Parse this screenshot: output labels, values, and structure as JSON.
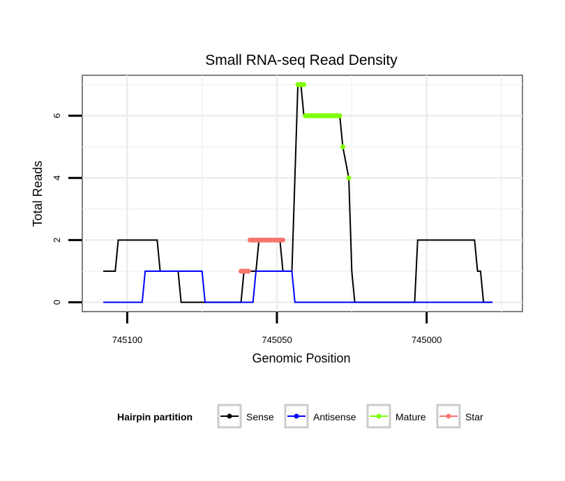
{
  "chart_data": {
    "type": "line",
    "title": "Small RNA-seq Read Density",
    "xlabel": "Genomic Position",
    "ylabel": "Total Reads",
    "x_reversed": true,
    "xlim": [
      745115,
      744968
    ],
    "ylim": [
      -0.3,
      7.3
    ],
    "x_ticks": [
      745100,
      745050,
      745000
    ],
    "x_tick_labels": [
      "745100",
      "745050",
      "745000"
    ],
    "y_ticks": [
      0,
      2,
      4,
      6
    ],
    "y_tick_labels": [
      "0",
      "2",
      "4",
      "6"
    ],
    "grid": true,
    "legend_position": "bottom",
    "legend_title": "Hairpin partition",
    "series": [
      {
        "name": "Sense",
        "color": "#000000",
        "x": [
          745108,
          745105,
          745104,
          745103,
          745090,
          745089,
          745085,
          745083,
          745082,
          745062,
          745061,
          745058,
          745057,
          745056,
          745053,
          745052,
          745051,
          745049,
          745048,
          745046,
          745045,
          745043,
          745042,
          745041,
          745036,
          745035,
          745033,
          745032,
          745029,
          745028,
          745026,
          745025,
          745024,
          745023,
          745004,
          745003,
          745001,
          745000,
          744984,
          744983,
          744982,
          744981,
          744978
        ],
        "y": [
          1,
          1,
          1,
          2,
          2,
          1,
          1,
          1,
          0,
          0,
          1,
          1,
          1,
          2,
          2,
          2,
          2,
          2,
          1,
          1,
          1,
          7,
          7,
          6,
          6,
          6,
          6,
          6,
          6,
          5,
          4,
          1,
          0,
          0,
          0,
          2,
          2,
          2,
          2,
          1,
          1,
          0,
          0
        ]
      },
      {
        "name": "Antisense",
        "color": "#0000ff",
        "x": [
          745108,
          745095,
          745094,
          745093,
          745076,
          745075,
          745074,
          745067,
          745066,
          745060,
          745059,
          745058,
          745057,
          745056,
          745046,
          745045,
          745044,
          745043,
          745042,
          745041,
          744981,
          744978
        ],
        "y": [
          0,
          0,
          1,
          1,
          1,
          1,
          0,
          0,
          0,
          0,
          0,
          0,
          1,
          1,
          1,
          1,
          0,
          0,
          0,
          0,
          0,
          0
        ]
      },
      {
        "name": "Mature",
        "color": "#7fff00",
        "x": [
          745043,
          745042.5,
          745042,
          745041.5,
          745041,
          745040.5,
          745040,
          745039.5,
          745039,
          745038.5,
          745038,
          745037.5,
          745037,
          745036.5,
          745036,
          745035.5,
          745035,
          745034.5,
          745034,
          745033.5,
          745033,
          745032.5,
          745032,
          745031.5,
          745031,
          745030.5,
          745030,
          745029.5,
          745029,
          745028,
          745026
        ],
        "y": [
          7,
          7,
          7,
          7,
          7,
          6,
          6,
          6,
          6,
          6,
          6,
          6,
          6,
          6,
          6,
          6,
          6,
          6,
          6,
          6,
          6,
          6,
          6,
          6,
          6,
          6,
          6,
          6,
          6,
          5,
          4
        ]
      },
      {
        "name": "Star",
        "color": "#f8766d",
        "x": [
          745062,
          745061.5,
          745061,
          745060.5,
          745060,
          745059.5,
          745059,
          745058.5,
          745058,
          745057.5,
          745057,
          745056.5,
          745056,
          745055.5,
          745055,
          745054.5,
          745054,
          745053.5,
          745053,
          745052.5,
          745052,
          745051.5,
          745051,
          745050.5,
          745050,
          745049.5,
          745049,
          745048.5,
          745048
        ],
        "y": [
          1,
          1,
          1,
          1,
          1,
          1,
          2,
          2,
          2,
          2,
          2,
          2,
          2,
          2,
          2,
          2,
          2,
          2,
          2,
          2,
          2,
          2,
          2,
          2,
          2,
          2,
          2,
          2,
          2
        ],
        "markers_only": true
      }
    ]
  }
}
